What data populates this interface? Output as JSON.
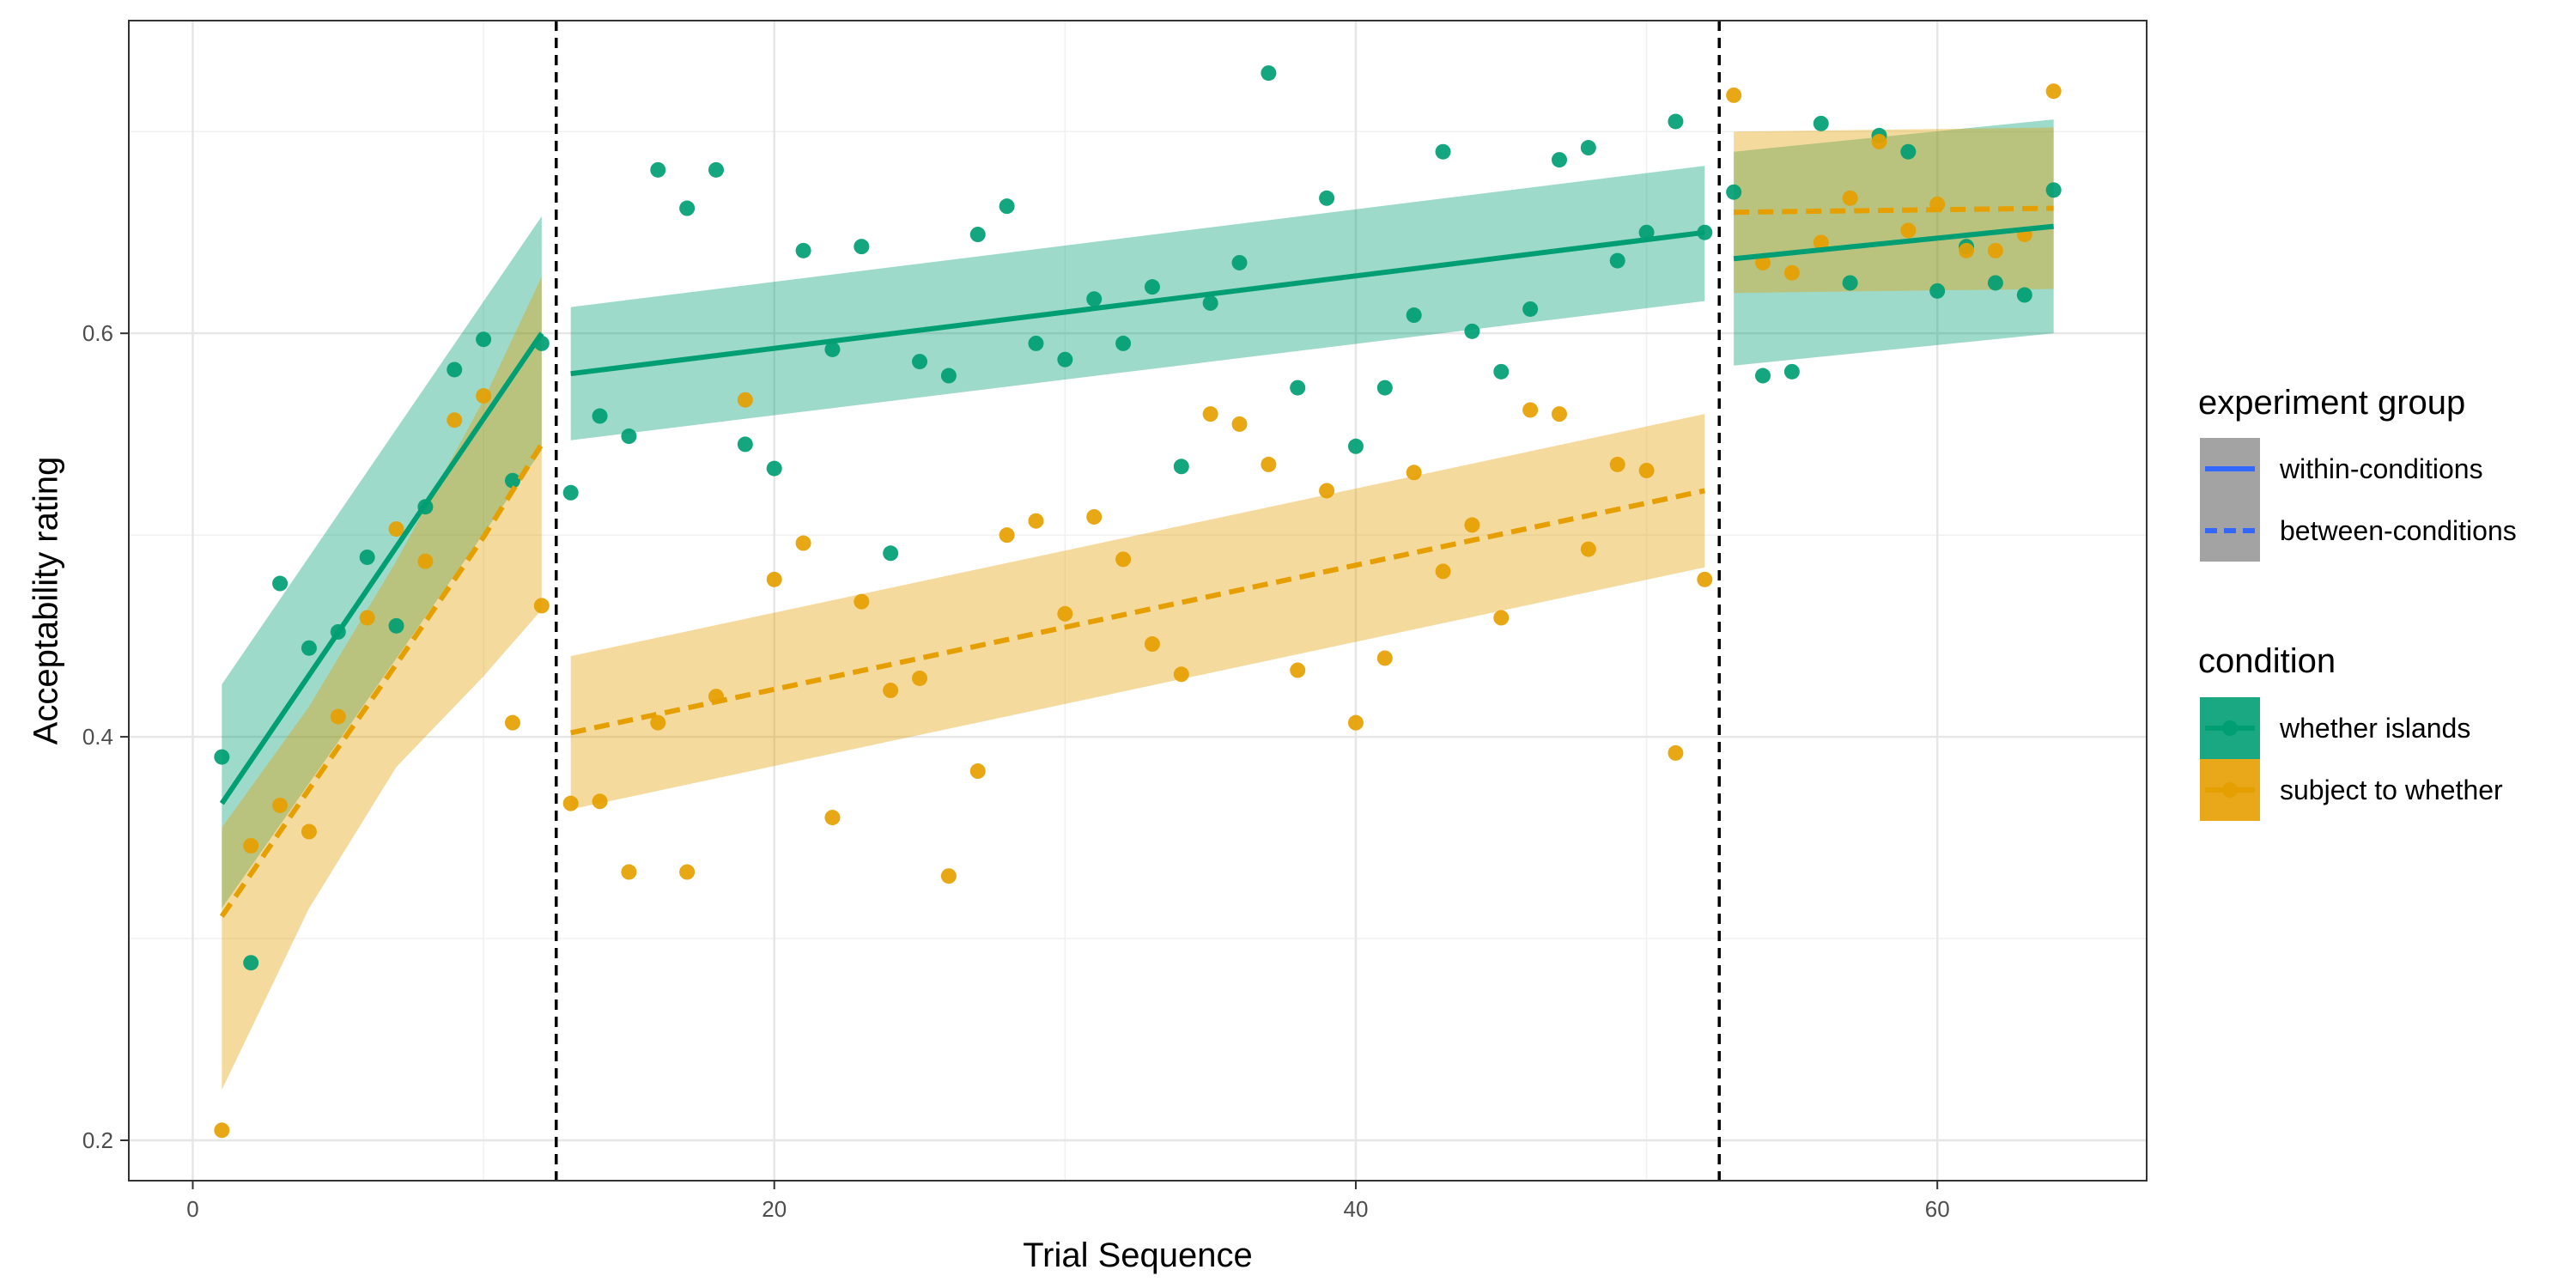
{
  "chart_data": {
    "type": "scatter",
    "xlabel": "Trial Sequence",
    "ylabel": "Acceptability rating",
    "xlim": [
      -2.2,
      67.2
    ],
    "ylim": [
      0.18,
      0.755
    ],
    "x_ticks": [
      0,
      20,
      40,
      60
    ],
    "y_ticks": [
      0.2,
      0.4,
      0.6
    ],
    "x_tick_labels": [
      "0",
      "20",
      "40",
      "60"
    ],
    "y_tick_labels": [
      "0.2",
      "0.4",
      "0.6"
    ],
    "grid": true,
    "vlines": [
      12.5,
      52.5
    ],
    "legend_position": "right",
    "legends": [
      {
        "title": "experiment group",
        "items": [
          {
            "label": "within-conditions",
            "linestyle": "solid"
          },
          {
            "label": "between-conditions",
            "linestyle": "dashed"
          }
        ]
      },
      {
        "title": "condition",
        "items": [
          {
            "label": "whether islands",
            "color": "#009E73"
          },
          {
            "label": "subject to whether",
            "color": "#E69F00"
          }
        ]
      }
    ],
    "series": [
      {
        "name": "whether islands",
        "color": "#009E73",
        "points": [
          [
            1,
            0.39
          ],
          [
            2,
            0.288
          ],
          [
            3,
            0.476
          ],
          [
            4,
            0.444
          ],
          [
            5,
            0.452
          ],
          [
            6,
            0.489
          ],
          [
            7,
            0.455
          ],
          [
            8,
            0.514
          ],
          [
            9,
            0.582
          ],
          [
            10,
            0.597
          ],
          [
            11,
            0.527
          ],
          [
            12,
            0.595
          ],
          [
            13,
            0.521
          ],
          [
            14,
            0.559
          ],
          [
            15,
            0.549
          ],
          [
            16,
            0.681
          ],
          [
            17,
            0.662
          ],
          [
            18,
            0.681
          ],
          [
            19,
            0.545
          ],
          [
            20,
            0.533
          ],
          [
            21,
            0.641
          ],
          [
            22,
            0.592
          ],
          [
            23,
            0.643
          ],
          [
            24,
            0.491
          ],
          [
            25,
            0.586
          ],
          [
            26,
            0.579
          ],
          [
            27,
            0.649
          ],
          [
            28,
            0.663
          ],
          [
            29,
            0.595
          ],
          [
            30,
            0.587
          ],
          [
            31,
            0.617
          ],
          [
            32,
            0.595
          ],
          [
            33,
            0.623
          ],
          [
            34,
            0.534
          ],
          [
            35,
            0.615
          ],
          [
            36,
            0.635
          ],
          [
            37,
            0.729
          ],
          [
            38,
            0.573
          ],
          [
            39,
            0.667
          ],
          [
            40,
            0.544
          ],
          [
            41,
            0.573
          ],
          [
            42,
            0.609
          ],
          [
            43,
            0.69
          ],
          [
            44,
            0.601
          ],
          [
            45,
            0.581
          ],
          [
            46,
            0.612
          ],
          [
            47,
            0.686
          ],
          [
            48,
            0.692
          ],
          [
            49,
            0.636
          ],
          [
            50,
            0.65
          ],
          [
            51,
            0.705
          ],
          [
            52,
            0.65
          ],
          [
            53,
            0.67
          ],
          [
            54,
            0.579
          ],
          [
            55,
            0.581
          ],
          [
            56,
            0.704
          ],
          [
            57,
            0.625
          ],
          [
            58,
            0.698
          ],
          [
            59,
            0.69
          ],
          [
            60,
            0.621
          ],
          [
            61,
            0.643
          ],
          [
            62,
            0.625
          ],
          [
            63,
            0.619
          ],
          [
            64,
            0.671
          ]
        ],
        "fits": [
          {
            "group": "within-conditions",
            "linestyle": "solid",
            "x": [
              1,
              12
            ],
            "y": [
              0.367,
              0.6
            ],
            "ci_lower": [
              0.315,
              0.542
            ],
            "ci_upper": [
              0.426,
              0.658
            ]
          },
          {
            "group": "within-conditions",
            "linestyle": "solid",
            "x": [
              13,
              52
            ],
            "y": [
              0.58,
              0.65
            ],
            "ci_lower": [
              0.547,
              0.616
            ],
            "ci_upper": [
              0.613,
              0.683
            ]
          },
          {
            "group": "within-conditions",
            "linestyle": "solid",
            "x": [
              53,
              64
            ],
            "y": [
              0.637,
              0.653
            ],
            "ci_lower": [
              0.584,
              0.6
            ],
            "ci_upper": [
              0.69,
              0.706
            ]
          }
        ]
      },
      {
        "name": "subject to whether",
        "color": "#E69F00",
        "points": [
          [
            1,
            0.205
          ],
          [
            2,
            0.346
          ],
          [
            3,
            0.366
          ],
          [
            4,
            0.353
          ],
          [
            5,
            0.41
          ],
          [
            6,
            0.459
          ],
          [
            7,
            0.503
          ],
          [
            8,
            0.487
          ],
          [
            9,
            0.557
          ],
          [
            10,
            0.569
          ],
          [
            11,
            0.407
          ],
          [
            12,
            0.465
          ],
          [
            13,
            0.367
          ],
          [
            14,
            0.368
          ],
          [
            15,
            0.333
          ],
          [
            16,
            0.407
          ],
          [
            17,
            0.333
          ],
          [
            18,
            0.42
          ],
          [
            19,
            0.567
          ],
          [
            20,
            0.478
          ],
          [
            21,
            0.496
          ],
          [
            22,
            0.36
          ],
          [
            23,
            0.467
          ],
          [
            24,
            0.423
          ],
          [
            25,
            0.429
          ],
          [
            26,
            0.331
          ],
          [
            27,
            0.383
          ],
          [
            28,
            0.5
          ],
          [
            29,
            0.507
          ],
          [
            30,
            0.461
          ],
          [
            31,
            0.509
          ],
          [
            32,
            0.488
          ],
          [
            33,
            0.446
          ],
          [
            34,
            0.431
          ],
          [
            35,
            0.56
          ],
          [
            36,
            0.555
          ],
          [
            37,
            0.535
          ],
          [
            38,
            0.433
          ],
          [
            39,
            0.522
          ],
          [
            40,
            0.407
          ],
          [
            41,
            0.439
          ],
          [
            42,
            0.531
          ],
          [
            43,
            0.482
          ],
          [
            44,
            0.505
          ],
          [
            45,
            0.459
          ],
          [
            46,
            0.562
          ],
          [
            47,
            0.56
          ],
          [
            48,
            0.493
          ],
          [
            49,
            0.535
          ],
          [
            50,
            0.532
          ],
          [
            51,
            0.392
          ],
          [
            52,
            0.478
          ],
          [
            53,
            0.718
          ],
          [
            54,
            0.635
          ],
          [
            55,
            0.63
          ],
          [
            56,
            0.645
          ],
          [
            57,
            0.667
          ],
          [
            58,
            0.695
          ],
          [
            59,
            0.651
          ],
          [
            60,
            0.664
          ],
          [
            61,
            0.641
          ],
          [
            62,
            0.641
          ],
          [
            63,
            0.649
          ],
          [
            64,
            0.72
          ]
        ],
        "fits": [
          {
            "group": "between-conditions",
            "linestyle": "dashed",
            "x": [
              1,
              4,
              7,
              10,
              12
            ],
            "y": [
              0.311,
              0.374,
              0.436,
              0.499,
              0.545
            ],
            "ci_lower": [
              0.225,
              0.315,
              0.385,
              0.43,
              0.463
            ],
            "ci_upper": [
              0.355,
              0.415,
              0.487,
              0.567,
              0.628
            ]
          },
          {
            "group": "between-conditions",
            "linestyle": "dashed",
            "x": [
              13,
              52
            ],
            "y": [
              0.402,
              0.522
            ],
            "ci_lower": [
              0.364,
              0.484
            ],
            "ci_upper": [
              0.44,
              0.56
            ]
          },
          {
            "group": "between-conditions",
            "linestyle": "dashed",
            "x": [
              53,
              64
            ],
            "y": [
              0.66,
              0.662
            ],
            "ci_lower": [
              0.62,
              0.622
            ],
            "ci_upper": [
              0.7,
              0.702
            ]
          }
        ]
      }
    ]
  }
}
